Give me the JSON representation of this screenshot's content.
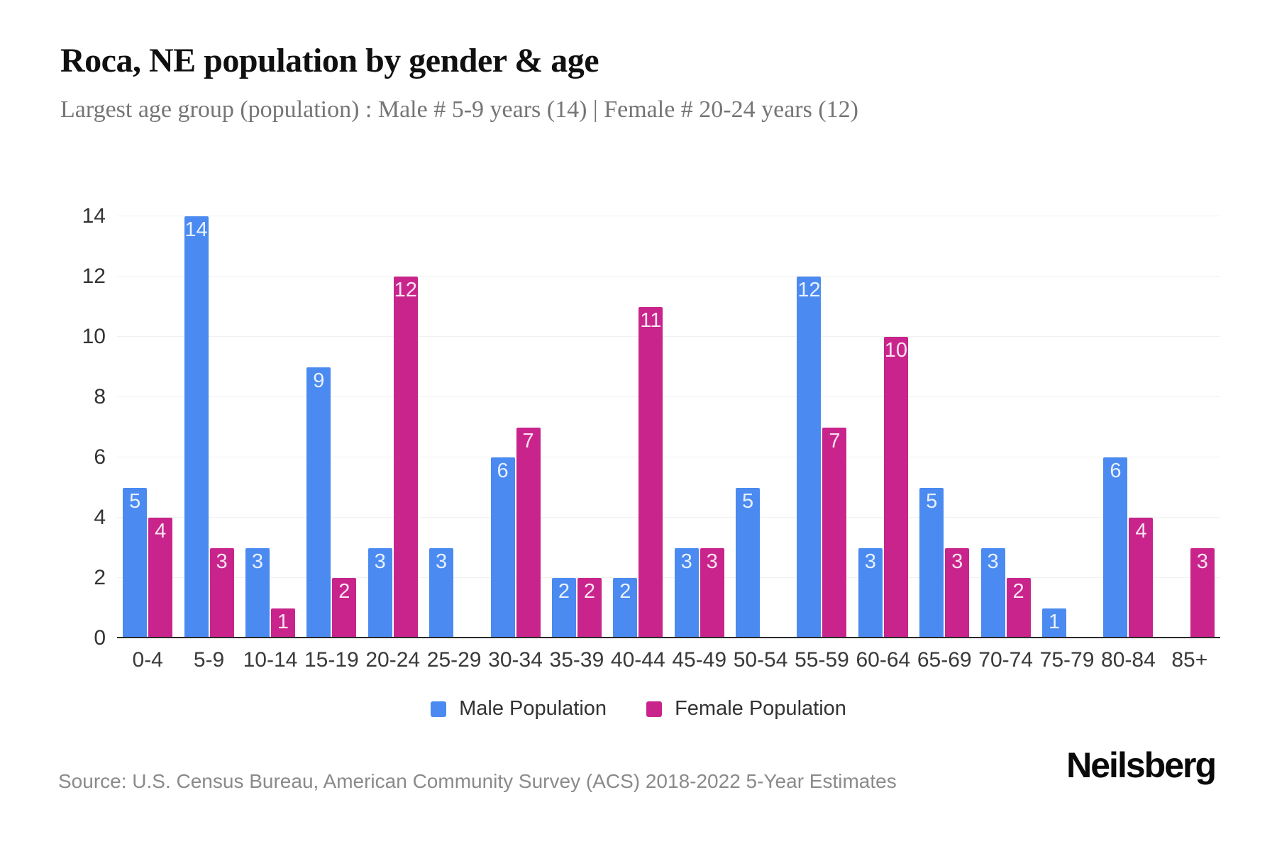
{
  "header": {
    "title": "Roca, NE population by gender & age",
    "subtitle": "Largest age group (population) : Male # 5-9 years (14) | Female # 20-24 years (12)"
  },
  "chart_data": {
    "type": "bar",
    "title": "Roca, NE population by gender & age",
    "xlabel": "",
    "ylabel": "",
    "categories": [
      "0-4",
      "5-9",
      "10-14",
      "15-19",
      "20-24",
      "25-29",
      "30-34",
      "35-39",
      "40-44",
      "45-49",
      "50-54",
      "55-59",
      "60-64",
      "65-69",
      "70-74",
      "75-79",
      "80-84",
      "85+"
    ],
    "series": [
      {
        "name": "Male Population",
        "color": "#4a8af1",
        "values": [
          5,
          14,
          3,
          9,
          3,
          3,
          6,
          2,
          2,
          3,
          5,
          12,
          3,
          5,
          3,
          1,
          6,
          0
        ]
      },
      {
        "name": "Female Population",
        "color": "#c9248c",
        "values": [
          4,
          3,
          1,
          2,
          12,
          0,
          7,
          2,
          11,
          3,
          0,
          7,
          10,
          3,
          2,
          0,
          4,
          3
        ]
      }
    ],
    "ylim": [
      0,
      14
    ],
    "yticks": [
      0,
      2,
      4,
      6,
      8,
      10,
      12,
      14
    ],
    "grid": "horizontal-light",
    "legend_position": "bottom-center",
    "bar_value_labels": "inside-top"
  },
  "footer": {
    "source": "Source: U.S. Census Bureau, American Community Survey (ACS) 2018-2022 5-Year Estimates",
    "brand": "Neilsberg"
  }
}
